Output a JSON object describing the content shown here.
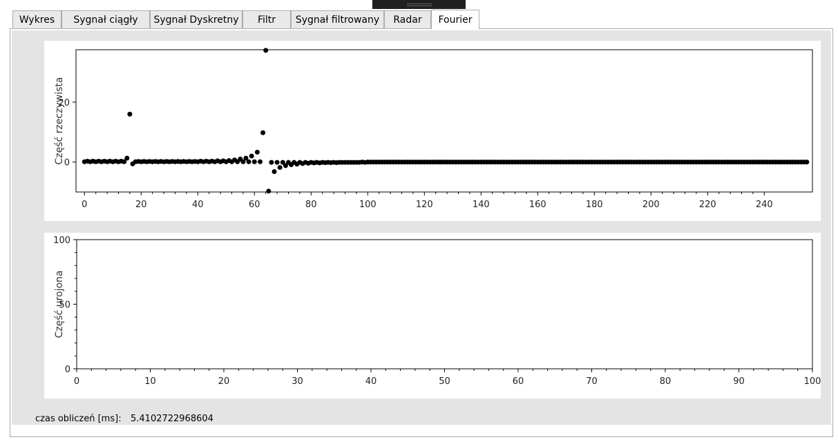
{
  "tabs": [
    {
      "label": "Wykres"
    },
    {
      "label": "Sygnał ciągły"
    },
    {
      "label": "Sygnał Dyskretny"
    },
    {
      "label": "Filtr"
    },
    {
      "label": "Sygnał filtrowany"
    },
    {
      "label": "Radar"
    },
    {
      "label": "Fourier",
      "active": true
    }
  ],
  "status": {
    "label": "czas obliczeń [ms]:",
    "value": "5.4102722968604"
  },
  "chart_data": [
    {
      "type": "scatter",
      "ylabel": "Część rzeczywista",
      "xlim": [
        -3,
        257
      ],
      "ylim": [
        -10,
        37.5
      ],
      "xticks": [
        0,
        20,
        40,
        60,
        80,
        100,
        120,
        140,
        160,
        180,
        200,
        220,
        240
      ],
      "yticks": [
        0,
        20
      ],
      "points": [
        [
          0,
          0.1
        ],
        [
          1,
          0.3
        ],
        [
          2,
          0.1
        ],
        [
          3,
          0.3
        ],
        [
          4,
          0.1
        ],
        [
          5,
          0.3
        ],
        [
          6,
          0.1
        ],
        [
          7,
          0.3
        ],
        [
          8,
          0.1
        ],
        [
          9,
          0.3
        ],
        [
          10,
          0.1
        ],
        [
          11,
          0.3
        ],
        [
          12,
          0.1
        ],
        [
          13,
          0.3
        ],
        [
          14,
          0.1
        ],
        [
          15,
          1.3
        ],
        [
          16,
          16
        ],
        [
          17,
          -0.6
        ],
        [
          18,
          0.1
        ],
        [
          19,
          0.2
        ],
        [
          20,
          0.1
        ],
        [
          21,
          0.2
        ],
        [
          22,
          0.1
        ],
        [
          23,
          0.2
        ],
        [
          24,
          0.1
        ],
        [
          25,
          0.2
        ],
        [
          26,
          0.1
        ],
        [
          27,
          0.2
        ],
        [
          28,
          0.1
        ],
        [
          29,
          0.2
        ],
        [
          30,
          0.1
        ],
        [
          31,
          0.2
        ],
        [
          32,
          0.1
        ],
        [
          33,
          0.2
        ],
        [
          34,
          0.1
        ],
        [
          35,
          0.2
        ],
        [
          36,
          0.1
        ],
        [
          37,
          0.2
        ],
        [
          38,
          0.1
        ],
        [
          39,
          0.2
        ],
        [
          40,
          0.1
        ],
        [
          41,
          0.3
        ],
        [
          42,
          0.1
        ],
        [
          43,
          0.3
        ],
        [
          44,
          0.1
        ],
        [
          45,
          0.3
        ],
        [
          46,
          0.1
        ],
        [
          47,
          0.4
        ],
        [
          48,
          0.1
        ],
        [
          49,
          0.4
        ],
        [
          50,
          0.1
        ],
        [
          51,
          0.5
        ],
        [
          52,
          0.1
        ],
        [
          53,
          0.7
        ],
        [
          54,
          0.1
        ],
        [
          55,
          1.0
        ],
        [
          56,
          0.1
        ],
        [
          57,
          1.3
        ],
        [
          58,
          0.1
        ],
        [
          59,
          2.0
        ],
        [
          60,
          0.1
        ],
        [
          61,
          3.3
        ],
        [
          62,
          0.1
        ],
        [
          63,
          9.8
        ],
        [
          64,
          37.3
        ],
        [
          65,
          -9.7
        ],
        [
          66,
          -0.1
        ],
        [
          67,
          -3.2
        ],
        [
          68,
          -0.1
        ],
        [
          69,
          -1.8
        ],
        [
          70,
          -0.1
        ],
        [
          71,
          -1.2
        ],
        [
          72,
          -0.1
        ],
        [
          73,
          -0.9
        ],
        [
          74,
          -0.1
        ],
        [
          75,
          -0.7
        ],
        [
          76,
          -0.1
        ],
        [
          77,
          -0.5
        ],
        [
          78,
          -0.1
        ],
        [
          79,
          -0.4
        ],
        [
          80,
          -0.1
        ],
        [
          81,
          -0.3
        ],
        [
          82,
          -0.1
        ],
        [
          83,
          -0.3
        ],
        [
          84,
          -0.1
        ],
        [
          85,
          -0.2
        ],
        [
          86,
          -0.1
        ],
        [
          87,
          -0.2
        ],
        [
          88,
          -0.1
        ],
        [
          89,
          -0.2
        ],
        [
          90,
          -0.1
        ],
        [
          91,
          -0.1
        ],
        [
          92,
          -0.1
        ],
        [
          93,
          -0.1
        ],
        [
          94,
          -0.1
        ],
        [
          95,
          -0.1
        ],
        [
          96,
          -0.1
        ],
        [
          97,
          -0.1
        ],
        [
          98,
          0
        ],
        [
          99,
          -0.1
        ],
        [
          100,
          0
        ]
      ],
      "tail": {
        "x_from": 101,
        "x_to": 255,
        "y": 0
      }
    },
    {
      "type": "scatter",
      "ylabel": "Część urojona",
      "xlim": [
        0,
        100
      ],
      "ylim": [
        0,
        100
      ],
      "xticks": [
        0,
        10,
        20,
        30,
        40,
        50,
        60,
        70,
        80,
        90,
        100
      ],
      "yticks": [
        0,
        50,
        100
      ],
      "points": []
    }
  ]
}
